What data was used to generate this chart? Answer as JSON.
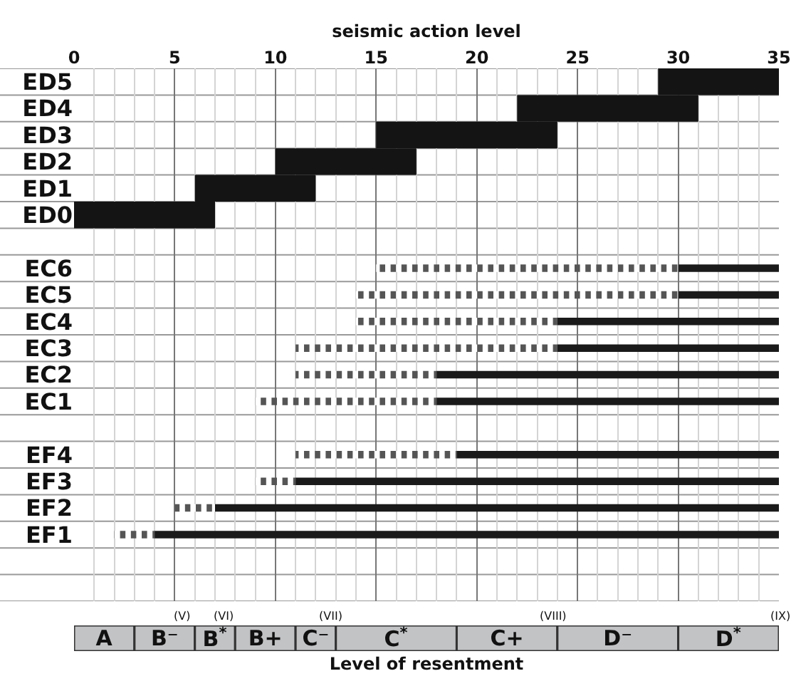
{
  "chart_data": [
    {
      "type": "bar",
      "orientation": "horizontal",
      "xlabel": "seismic action level",
      "xlim": [
        0,
        35
      ],
      "xticks": [
        0,
        5,
        10,
        15,
        20,
        25,
        30,
        35
      ],
      "grid": true,
      "legend": false,
      "categories": [
        "ED5",
        "ED4",
        "ED3",
        "ED2",
        "ED1",
        "ED0",
        null,
        "EC6",
        "EC5",
        "EC4",
        "EC3",
        "EC2",
        "EC1",
        null,
        "EF4",
        "EF3",
        "EF2",
        "EF1"
      ],
      "series": [
        {
          "color": "#141414",
          "base": [
            29,
            22,
            15,
            10,
            6,
            0,
            null,
            null,
            null,
            null,
            null,
            null,
            null,
            null,
            null,
            null,
            null,
            null
          ],
          "values": [
            6,
            9,
            9,
            7,
            6,
            7,
            null,
            null,
            null,
            null,
            null,
            null,
            null,
            null,
            null,
            null,
            null,
            null
          ]
        },
        {
          "line_style": "dotted",
          "color": "#555555",
          "base": [
            null,
            null,
            null,
            null,
            null,
            null,
            null,
            15,
            14,
            14,
            11,
            11,
            9,
            null,
            11,
            9,
            5,
            2
          ],
          "values": [
            null,
            null,
            null,
            null,
            null,
            null,
            null,
            15,
            16,
            10,
            13,
            7,
            9,
            null,
            8,
            2,
            2,
            2
          ]
        },
        {
          "line_style": "solid",
          "color": "#1a1a1a",
          "base": [
            null,
            null,
            null,
            null,
            null,
            null,
            null,
            30,
            30,
            24,
            24,
            18,
            18,
            null,
            19,
            11,
            7,
            4
          ],
          "values": [
            null,
            null,
            null,
            null,
            null,
            null,
            null,
            5,
            5,
            11,
            11,
            17,
            17,
            null,
            16,
            24,
            28,
            31
          ]
        }
      ]
    },
    {
      "type": "bar",
      "orientation": "horizontal",
      "stacked": true,
      "xlabel": "Level of resentment",
      "xlim": [
        0,
        35
      ],
      "legend": false,
      "categories": [
        null
      ],
      "series": [
        {
          "name": "A",
          "color": "#c1c3c5",
          "values": [
            3
          ]
        },
        {
          "name": "B⁻",
          "color": "#c1c3c5",
          "values": [
            3
          ]
        },
        {
          "name": "B$^{*}$",
          "color": "#c1c3c5",
          "values": [
            2
          ]
        },
        {
          "name": "B+",
          "color": "#c1c3c5",
          "values": [
            3
          ]
        },
        {
          "name": "C⁻",
          "color": "#c1c3c5",
          "values": [
            2
          ]
        },
        {
          "name": "C$^{*}$",
          "color": "#c1c3c5",
          "values": [
            6
          ]
        },
        {
          "name": "C+",
          "color": "#c1c3c5",
          "values": [
            5
          ]
        },
        {
          "name": "D⁻",
          "color": "#c1c3c5",
          "values": [
            6
          ]
        },
        {
          "name": "D$^{*}$",
          "color": "#c1c3c5",
          "values": [
            5
          ]
        }
      ],
      "annotations": [
        "(V)",
        "(VI)",
        "(VII)",
        "(VIII)",
        "(IX)"
      ]
    }
  ]
}
